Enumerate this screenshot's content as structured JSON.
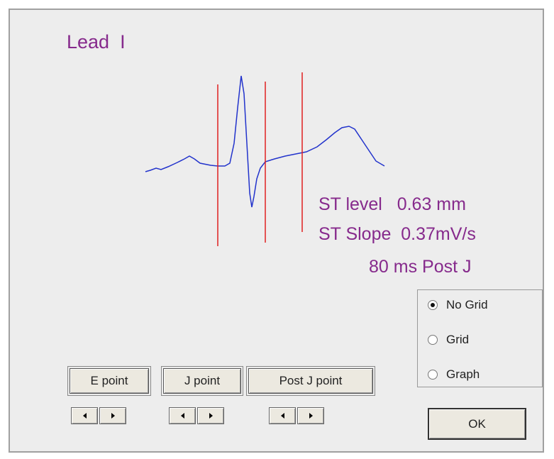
{
  "title": "Lead  I",
  "st_info": [
    "ST level   0.63 mm",
    "ST Slope  0.37mV/s",
    "80 ms Post J"
  ],
  "point_buttons": [
    "E point",
    "J point",
    "Post J point"
  ],
  "grid_options": [
    "No Grid",
    "Grid",
    "Graph"
  ],
  "selected_grid_option": 0,
  "ok_button": "OK"
}
